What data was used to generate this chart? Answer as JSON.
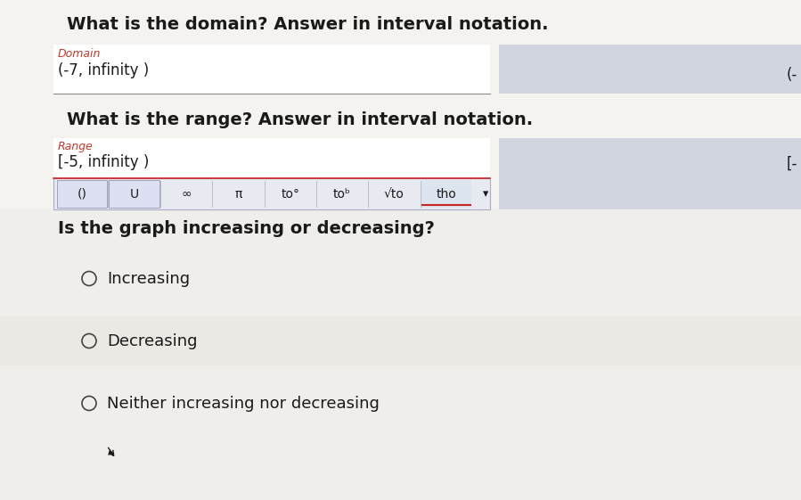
{
  "bg_color": "#f0eeeb",
  "left_panel_bg": "#ffffff",
  "right_box_bg": "#d0d5e0",
  "toolbar_bg": "#e8eaf0",
  "toolbar_border": "#9999bb",
  "text_color": "#1a1a1a",
  "label1_color": "#c0392b",
  "label2_color": "#c0392b",
  "title1": "What is the domain? Answer in interval notation.",
  "label1": "Domain",
  "answer1": "(-7, infinity )",
  "title2": "What is the range? Answer in interval notation.",
  "label2": "Range",
  "answer2": "[-5, infinity )",
  "right_text1": "(-",
  "right_text2": "[-",
  "underline_color1": "#888888",
  "underline_color2": "#cc2222",
  "toolbar_items": [
    "()",
    "U",
    "∞",
    "π",
    "to°",
    "toᵇ",
    "√to",
    "tho"
  ],
  "dropdown_arrow": "▾",
  "section3_title": "Is the graph increasing or decreasing?",
  "options": [
    "Increasing",
    "Decreasing",
    "Neither increasing nor decreasing"
  ],
  "option_row_bg": "#f5f3f0",
  "title_fontsize": 14,
  "label_fontsize": 9,
  "answer_fontsize": 12,
  "toolbar_fontsize": 10,
  "body_fontsize": 13
}
